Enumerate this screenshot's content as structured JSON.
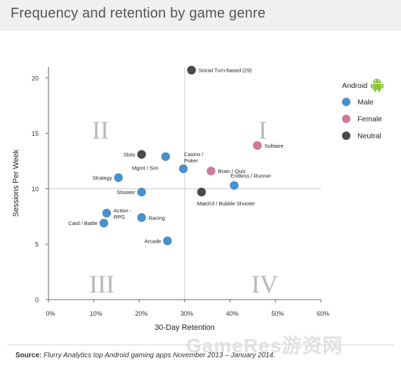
{
  "title": "Frequency and retention by game genre",
  "footer": {
    "source_label": "Source:",
    "source_text": "Flurry Analytics top Android gaming apps November 2013 – January 2014."
  },
  "watermark": "GameRes游资网",
  "colors": {
    "Male": "#4a90cc",
    "Female": "#cc7a9c",
    "Neutral": "#4a4a4a",
    "android": "#8dc63f"
  },
  "chart_data": {
    "type": "scatter",
    "xlabel": "30-Day Retention",
    "ylabel": "Sessions Per Week",
    "xlim": [
      0,
      60
    ],
    "ylim": [
      0,
      21
    ],
    "xticks": [
      0,
      10,
      20,
      30,
      40,
      50,
      60
    ],
    "xtick_labels": [
      "0%",
      "10%",
      "20%",
      "30%",
      "40%",
      "50%",
      "60%"
    ],
    "yticks": [
      0,
      5,
      10,
      15,
      20
    ],
    "ytick_labels": [
      "0",
      "5",
      "10",
      "15",
      "20"
    ],
    "divider_x": 30,
    "divider_y": 10,
    "quadrants": [
      "I",
      "II",
      "III",
      "IV"
    ],
    "legend": {
      "title": "Android",
      "position": "right",
      "entries": [
        "Male",
        "Female",
        "Neutral"
      ]
    },
    "points": [
      {
        "label": "Social Turn-based (29)",
        "x": 31.5,
        "y": 20.7,
        "group": "Neutral",
        "anchor": "right"
      },
      {
        "label": "Solitaire",
        "x": 46,
        "y": 13.9,
        "group": "Female",
        "anchor": "right"
      },
      {
        "label": "Slots",
        "x": 20.5,
        "y": 13.1,
        "group": "Neutral",
        "anchor": "left"
      },
      {
        "label": "Mgmt / Sim",
        "x": 25.8,
        "y": 12.9,
        "group": "Male",
        "anchor": "below-left"
      },
      {
        "label": "Casino / Poker",
        "x": 29.7,
        "y": 11.8,
        "group": "Male",
        "anchor": "above-right"
      },
      {
        "label": "Brain / Quiz",
        "x": 35.8,
        "y": 11.6,
        "group": "Female",
        "anchor": "right"
      },
      {
        "label": "Strategy",
        "x": 15.4,
        "y": 11.0,
        "group": "Male",
        "anchor": "left"
      },
      {
        "label": "Endless / Runner",
        "x": 40.9,
        "y": 10.3,
        "group": "Male",
        "anchor": "above-right"
      },
      {
        "label": "Shooter",
        "x": 20.5,
        "y": 9.7,
        "group": "Male",
        "anchor": "left"
      },
      {
        "label": "Match3 / Bubble Shooter",
        "x": 33.7,
        "y": 9.7,
        "group": "Neutral",
        "anchor": "below-left"
      },
      {
        "label": "Action - RPG",
        "x": 12.8,
        "y": 7.8,
        "group": "Male",
        "anchor": "right"
      },
      {
        "label": "Racing",
        "x": 20.5,
        "y": 7.4,
        "group": "Male",
        "anchor": "right"
      },
      {
        "label": "Card / Battle",
        "x": 12.2,
        "y": 6.9,
        "group": "Male",
        "anchor": "left"
      },
      {
        "label": "Arcade",
        "x": 26.2,
        "y": 5.3,
        "group": "Male",
        "anchor": "left"
      }
    ]
  }
}
